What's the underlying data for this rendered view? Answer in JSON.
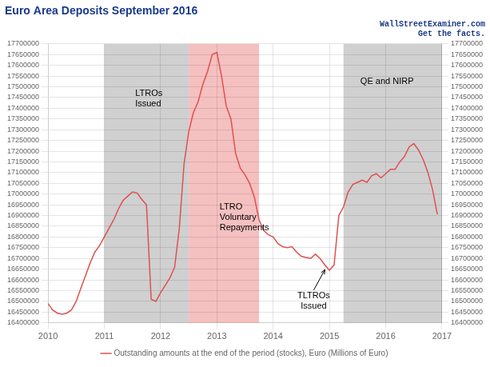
{
  "chart_data": {
    "type": "line",
    "title": "Euro Area Deposits September 2016",
    "subtitle": [
      "WallStreetExaminer.com",
      "Get the facts."
    ],
    "x": [
      2010.0,
      2010.083,
      2010.167,
      2010.25,
      2010.333,
      2010.417,
      2010.5,
      2010.583,
      2010.667,
      2010.75,
      2010.833,
      2010.917,
      2011.0,
      2011.083,
      2011.167,
      2011.25,
      2011.333,
      2011.417,
      2011.5,
      2011.583,
      2011.667,
      2011.75,
      2011.833,
      2011.917,
      2012.0,
      2012.083,
      2012.167,
      2012.25,
      2012.333,
      2012.417,
      2012.5,
      2012.583,
      2012.667,
      2012.75,
      2012.833,
      2012.917,
      2013.0,
      2013.083,
      2013.167,
      2013.25,
      2013.333,
      2013.417,
      2013.5,
      2013.583,
      2013.667,
      2013.75,
      2013.833,
      2013.917,
      2014.0,
      2014.083,
      2014.167,
      2014.25,
      2014.333,
      2014.417,
      2014.5,
      2014.583,
      2014.667,
      2014.75,
      2014.833,
      2014.917,
      2015.0,
      2015.083,
      2015.167,
      2015.25,
      2015.333,
      2015.417,
      2015.5,
      2015.583,
      2015.667,
      2015.75,
      2015.833,
      2015.917,
      2016.0,
      2016.083,
      2016.167,
      2016.25,
      2016.333,
      2016.417,
      2016.5,
      2016.583,
      2016.667,
      2016.75,
      2016.833,
      2016.917
    ],
    "series": [
      {
        "name": "Outstanding amounts at the end of the period (stocks), Euro (Millions of Euro)",
        "color": "#e05050",
        "values": [
          16490000,
          16460000,
          16445000,
          16440000,
          16445000,
          16460000,
          16500000,
          16560000,
          16620000,
          16680000,
          16730000,
          16760000,
          16800000,
          16840000,
          16880000,
          16930000,
          16970000,
          16990000,
          17010000,
          17005000,
          16975000,
          16950000,
          16510000,
          16500000,
          16540000,
          16575000,
          16610000,
          16660000,
          16840000,
          17140000,
          17290000,
          17380000,
          17430000,
          17510000,
          17570000,
          17650000,
          17660000,
          17550000,
          17410000,
          17350000,
          17190000,
          17120000,
          17090000,
          17050000,
          16985000,
          16880000,
          16830000,
          16810000,
          16800000,
          16770000,
          16755000,
          16750000,
          16755000,
          16730000,
          16710000,
          16705000,
          16700000,
          16720000,
          16700000,
          16670000,
          16645000,
          16670000,
          16900000,
          16940000,
          17010000,
          17045000,
          17055000,
          17065000,
          17055000,
          17085000,
          17095000,
          17075000,
          17095000,
          17115000,
          17115000,
          17150000,
          17175000,
          17220000,
          17235000,
          17205000,
          17160000,
          17100000,
          17020000,
          16905000
        ]
      }
    ],
    "xlim": [
      2010.0,
      2017.0
    ],
    "xticks": [
      2010,
      2011,
      2012,
      2013,
      2014,
      2015,
      2016,
      2017
    ],
    "ylim": [
      16400000,
      17700000
    ],
    "yticks": [
      16400000,
      16450000,
      16500000,
      16550000,
      16600000,
      16650000,
      16700000,
      16750000,
      16800000,
      16850000,
      16900000,
      16950000,
      17000000,
      17050000,
      17100000,
      17150000,
      17200000,
      17250000,
      17300000,
      17350000,
      17400000,
      17450000,
      17500000,
      17550000,
      17600000,
      17650000,
      17700000
    ],
    "y2lim": [
      16400000,
      17700000
    ],
    "y2ticks": [
      16400000,
      16450000,
      16500000,
      16550000,
      16600000,
      16650000,
      16700000,
      16750000,
      16800000,
      16850000,
      16900000,
      16950000,
      17000000,
      17050000,
      17100000,
      17150000,
      17200000,
      17250000,
      17300000,
      17350000,
      17400000,
      17450000,
      17500000,
      17550000,
      17600000,
      17650000,
      17700000
    ],
    "shaded_regions": [
      {
        "start": 2011.0,
        "end": 2012.5,
        "color": "#d0d0d0"
      },
      {
        "start": 2012.5,
        "end": 2013.75,
        "color": "#f5c0c0"
      },
      {
        "start": 2015.25,
        "end": 2017.0,
        "color": "#d0d0d0"
      }
    ],
    "annotations": [
      {
        "text": "LTROs\nIssued",
        "x": 2011.55,
        "y": 17490000
      },
      {
        "text": "LTRO\nVoluntary\nRepayments",
        "x": 2013.05,
        "y": 16960000
      },
      {
        "text": "TLTROs\nIssued",
        "x": 2014.72,
        "y": 16545000,
        "arrow_to": [
          2014.92,
          16648000
        ]
      },
      {
        "text": "QE and NIRP",
        "x": 2015.55,
        "y": 17545000
      }
    ],
    "grid": true,
    "legend": "bottom"
  }
}
